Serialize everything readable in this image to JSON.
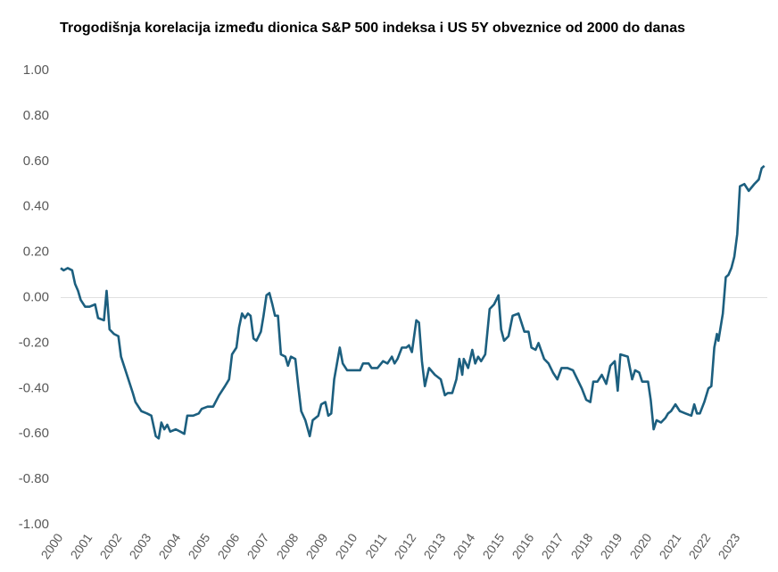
{
  "chart_data": {
    "type": "line",
    "title": "Trogodišnja korelacija između dionica S&P 500 indeksa i US 5Y obveznice od 2000 do danas",
    "x": [
      2000.0,
      2000.1,
      2000.24,
      2000.39,
      2000.49,
      2000.59,
      2000.68,
      2000.83,
      2000.98,
      2001.17,
      2001.27,
      2001.47,
      2001.56,
      2001.66,
      2001.81,
      2001.96,
      2002.05,
      2002.25,
      2002.45,
      2002.54,
      2002.74,
      2002.93,
      2003.08,
      2003.23,
      2003.33,
      2003.42,
      2003.52,
      2003.62,
      2003.72,
      2003.91,
      2004.06,
      2004.2,
      2004.3,
      2004.5,
      2004.69,
      2004.79,
      2004.99,
      2005.18,
      2005.38,
      2005.58,
      2005.72,
      2005.82,
      2005.97,
      2006.06,
      2006.16,
      2006.26,
      2006.36,
      2006.45,
      2006.55,
      2006.65,
      2006.8,
      2006.89,
      2006.99,
      2007.09,
      2007.19,
      2007.28,
      2007.38,
      2007.48,
      2007.63,
      2007.72,
      2007.82,
      2007.97,
      2008.07,
      2008.17,
      2008.31,
      2008.46,
      2008.56,
      2008.75,
      2008.85,
      2008.99,
      2009.09,
      2009.19,
      2009.29,
      2009.48,
      2009.58,
      2009.73,
      2009.97,
      2010.17,
      2010.27,
      2010.46,
      2010.56,
      2010.76,
      2010.95,
      2011.1,
      2011.25,
      2011.34,
      2011.44,
      2011.59,
      2011.74,
      2011.83,
      2011.93,
      2012.08,
      2012.17,
      2012.27,
      2012.37,
      2012.51,
      2012.71,
      2012.91,
      2013.05,
      2013.15,
      2013.3,
      2013.44,
      2013.54,
      2013.64,
      2013.69,
      2013.84,
      2013.98,
      2014.08,
      2014.18,
      2014.28,
      2014.42,
      2014.57,
      2014.72,
      2014.87,
      2014.96,
      2015.06,
      2015.21,
      2015.35,
      2015.55,
      2015.75,
      2015.89,
      2015.99,
      2016.13,
      2016.23,
      2016.42,
      2016.57,
      2016.72,
      2016.87,
      2017.01,
      2017.21,
      2017.4,
      2017.55,
      2017.7,
      2017.85,
      2017.99,
      2018.09,
      2018.23,
      2018.38,
      2018.53,
      2018.67,
      2018.82,
      2018.92,
      2019.01,
      2019.26,
      2019.41,
      2019.51,
      2019.65,
      2019.75,
      2019.95,
      2020.04,
      2020.14,
      2020.24,
      2020.39,
      2020.54,
      2020.63,
      2020.73,
      2020.88,
      2021.03,
      2021.22,
      2021.42,
      2021.52,
      2021.61,
      2021.71,
      2021.86,
      2022.0,
      2022.1,
      2022.2,
      2022.29,
      2022.34,
      2022.49,
      2022.59,
      2022.68,
      2022.78,
      2022.88,
      2022.98,
      2023.07,
      2023.22,
      2023.37,
      2023.56,
      2023.71,
      2023.81,
      2023.9
    ],
    "series": [
      {
        "color": "#1c5f7f",
        "values": [
          0.13,
          0.12,
          0.13,
          0.12,
          0.06,
          0.03,
          -0.01,
          -0.04,
          -0.04,
          -0.03,
          -0.09,
          -0.1,
          0.03,
          -0.14,
          -0.16,
          -0.17,
          -0.26,
          -0.34,
          -0.42,
          -0.46,
          -0.5,
          -0.51,
          -0.52,
          -0.61,
          -0.62,
          -0.55,
          -0.58,
          -0.56,
          -0.59,
          -0.58,
          -0.59,
          -0.6,
          -0.52,
          -0.52,
          -0.51,
          -0.49,
          -0.48,
          -0.48,
          -0.43,
          -0.39,
          -0.36,
          -0.25,
          -0.22,
          -0.13,
          -0.07,
          -0.09,
          -0.07,
          -0.08,
          -0.18,
          -0.19,
          -0.15,
          -0.08,
          0.01,
          0.02,
          -0.03,
          -0.08,
          -0.08,
          -0.25,
          -0.26,
          -0.3,
          -0.26,
          -0.27,
          -0.39,
          -0.5,
          -0.54,
          -0.61,
          -0.54,
          -0.52,
          -0.47,
          -0.46,
          -0.52,
          -0.51,
          -0.36,
          -0.22,
          -0.29,
          -0.32,
          -0.32,
          -0.32,
          -0.29,
          -0.29,
          -0.31,
          -0.31,
          -0.28,
          -0.29,
          -0.26,
          -0.29,
          -0.27,
          -0.22,
          -0.22,
          -0.21,
          -0.24,
          -0.1,
          -0.11,
          -0.28,
          -0.39,
          -0.31,
          -0.34,
          -0.36,
          -0.43,
          -0.42,
          -0.42,
          -0.36,
          -0.27,
          -0.34,
          -0.27,
          -0.31,
          -0.23,
          -0.29,
          -0.26,
          -0.28,
          -0.25,
          -0.05,
          -0.03,
          0.01,
          -0.14,
          -0.19,
          -0.17,
          -0.08,
          -0.07,
          -0.15,
          -0.15,
          -0.22,
          -0.23,
          -0.2,
          -0.27,
          -0.29,
          -0.33,
          -0.36,
          -0.31,
          -0.31,
          -0.32,
          -0.36,
          -0.4,
          -0.45,
          -0.46,
          -0.37,
          -0.37,
          -0.34,
          -0.38,
          -0.3,
          -0.28,
          -0.41,
          -0.25,
          -0.26,
          -0.36,
          -0.32,
          -0.33,
          -0.37,
          -0.37,
          -0.45,
          -0.58,
          -0.54,
          -0.55,
          -0.53,
          -0.51,
          -0.5,
          -0.47,
          -0.5,
          -0.51,
          -0.52,
          -0.47,
          -0.51,
          -0.51,
          -0.46,
          -0.4,
          -0.39,
          -0.22,
          -0.16,
          -0.19,
          -0.07,
          0.09,
          0.1,
          0.13,
          0.18,
          0.28,
          0.49,
          0.5,
          0.47,
          0.5,
          0.52,
          0.57,
          0.58
        ]
      }
    ],
    "xlim": [
      2000,
      2024
    ],
    "xticks": [
      2000,
      2001,
      2002,
      2003,
      2004,
      2005,
      2006,
      2007,
      2008,
      2009,
      2010,
      2011,
      2012,
      2013,
      2014,
      2015,
      2016,
      2017,
      2018,
      2019,
      2020,
      2021,
      2022,
      2023
    ],
    "ylim": [
      -1,
      1
    ],
    "yticks": [
      {
        "value": 1,
        "label": "1.00"
      },
      {
        "value": 0.8,
        "label": "0.80"
      },
      {
        "value": 0.6,
        "label": "0.60"
      },
      {
        "value": 0.4,
        "label": "0.40"
      },
      {
        "value": 0.2,
        "label": "0.20"
      },
      {
        "value": 0,
        "label": "0.00"
      },
      {
        "value": -0.2,
        "label": "-0.20"
      },
      {
        "value": -0.4,
        "label": "-0.40"
      },
      {
        "value": -0.6,
        "label": "-0.60"
      },
      {
        "value": -0.8,
        "label": "-0.80"
      },
      {
        "value": -1,
        "label": "-1.00"
      }
    ],
    "grid": false
  }
}
